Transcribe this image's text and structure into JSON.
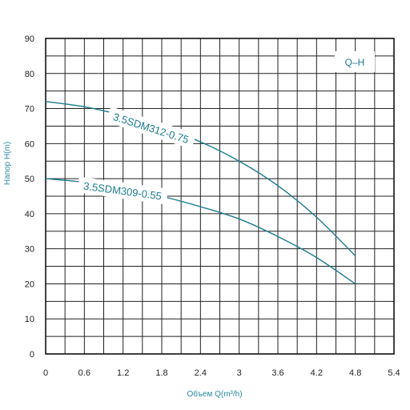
{
  "chart_data": {
    "type": "line",
    "title": "",
    "xlabel": "Объем Q(m³/h)",
    "ylabel": "Напор H(m)",
    "xlim": [
      0,
      5.4
    ],
    "ylim": [
      0,
      90
    ],
    "xticks": [
      0,
      0.6,
      1.2,
      1.8,
      2.4,
      3,
      3.6,
      4.2,
      4.8,
      5.4
    ],
    "xtick_labels": [
      "0",
      "0.6",
      "1.2",
      "1.8",
      "2.4",
      "3",
      "3.6",
      "4.2",
      "4.8",
      "5.4"
    ],
    "yticks": [
      0,
      10,
      20,
      30,
      40,
      50,
      60,
      70,
      80,
      90
    ],
    "ytick_labels": [
      "0",
      "10",
      "20",
      "30",
      "40",
      "50",
      "60",
      "70",
      "80",
      "90"
    ],
    "grid": true,
    "legend_badge": "Q–H",
    "line_color": "#1b7c90",
    "series": [
      {
        "name": "3.5SDM312-0.75",
        "x": [
          0,
          0.6,
          1.2,
          1.8,
          2.4,
          3.0,
          3.6,
          4.2,
          4.8
        ],
        "y": [
          72,
          70.5,
          68,
          64.5,
          60.5,
          55,
          48,
          39,
          28
        ]
      },
      {
        "name": "3.5SDM309-0.55",
        "x": [
          0,
          0.6,
          1.2,
          1.8,
          2.4,
          3.0,
          3.6,
          4.2,
          4.8
        ],
        "y": [
          50,
          49,
          47.5,
          45,
          42,
          38.5,
          33.5,
          27.5,
          20
        ]
      }
    ]
  }
}
